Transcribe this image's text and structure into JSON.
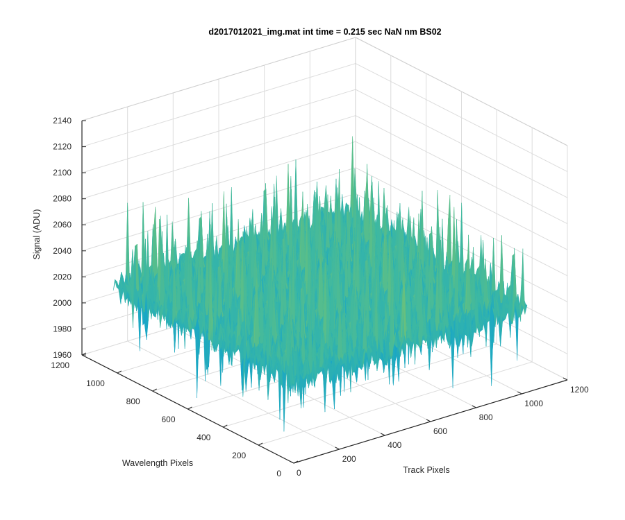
{
  "chart_data": {
    "type": "surface",
    "title": "d2017012021_img.mat int time = 0.215 sec  NaN nm BS02",
    "xlabel": "Track Pixels",
    "ylabel": "Wavelength Pixels",
    "zlabel": "Signal (ADU)",
    "xlim": [
      0,
      1200
    ],
    "ylim": [
      0,
      1200
    ],
    "zlim": [
      1960,
      2140
    ],
    "x_ticks": [
      0,
      200,
      400,
      600,
      800,
      1000,
      1200
    ],
    "y_ticks": [
      0,
      200,
      400,
      600,
      800,
      1000,
      1200
    ],
    "z_ticks": [
      1960,
      1980,
      2000,
      2020,
      2040,
      2060,
      2080,
      2100,
      2120,
      2140
    ],
    "data_extent": {
      "x": [
        1,
        1024
      ],
      "y": [
        1,
        1024
      ]
    },
    "signal_summary": {
      "typical_baseline": 2025,
      "min_approx": 1972,
      "max_approx": 2128
    },
    "grid": true,
    "colormap": "parula",
    "colors": {
      "low": "#1f77d4",
      "mid_low": "#16a5c9",
      "mid": "#3cb8a3",
      "mid_high": "#8fc85c",
      "high": "#e3c84a",
      "grid": "#dcdcdc",
      "axis": "#262626"
    }
  }
}
